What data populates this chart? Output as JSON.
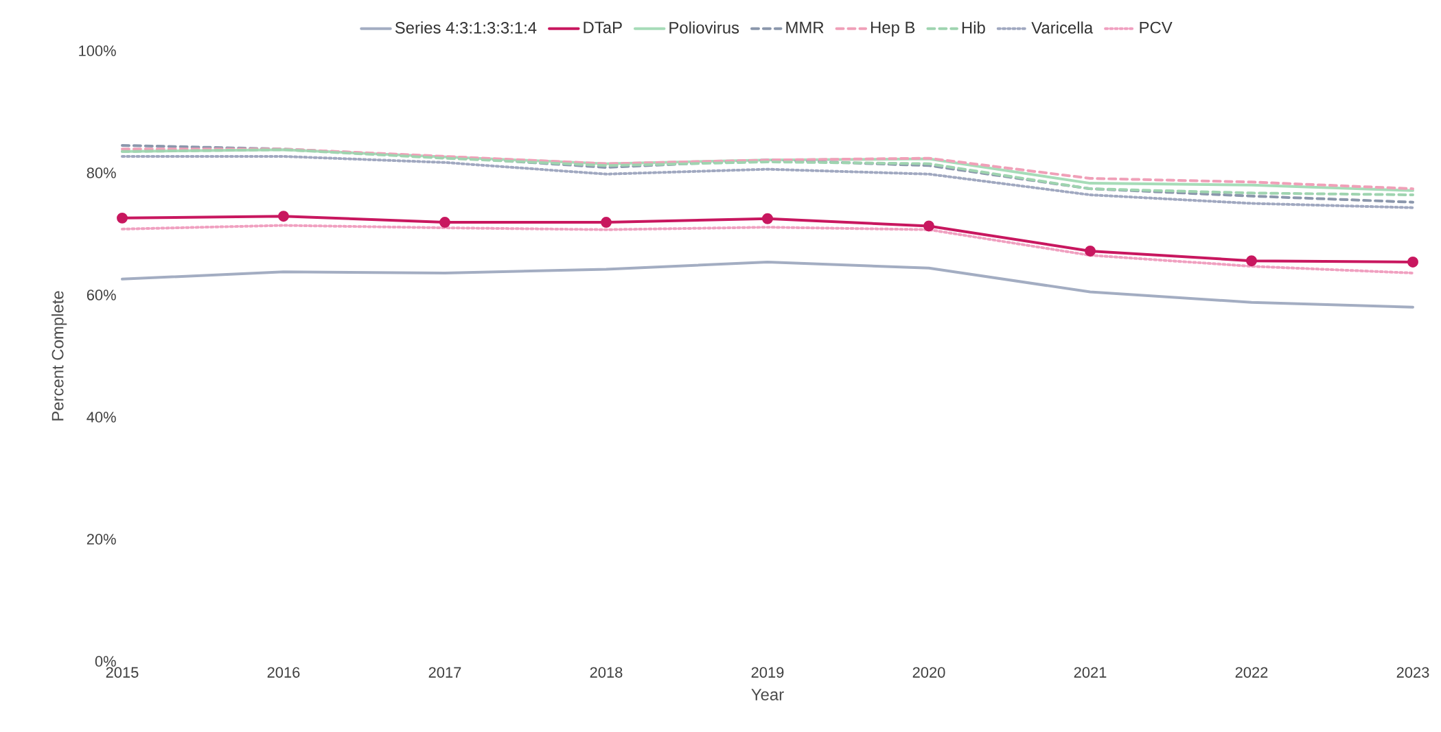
{
  "chart_data": {
    "type": "line",
    "xlabel": "Year",
    "ylabel": "Percent Complete",
    "x": [
      2015,
      2016,
      2017,
      2018,
      2019,
      2020,
      2021,
      2022,
      2023
    ],
    "xlim": [
      2015,
      2023
    ],
    "xticks": [
      2015,
      2016,
      2017,
      2018,
      2019,
      2020,
      2021,
      2022,
      2023
    ],
    "ylim": [
      0,
      100
    ],
    "yticks": [
      {
        "value": 0,
        "label": "0%"
      },
      {
        "value": 20,
        "label": "20%"
      },
      {
        "value": 40,
        "label": "40%"
      },
      {
        "value": 60,
        "label": "60%"
      },
      {
        "value": 80,
        "label": "80%"
      },
      {
        "value": 100,
        "label": "100%"
      }
    ],
    "grid": false,
    "legend": "top",
    "marker": "none",
    "line_style": "solid",
    "series": [
      {
        "name": "Series 4:3:1:3:3:1:4",
        "color": "#a3adc2",
        "values": [
          62.6,
          63.8,
          63.6,
          64.2,
          65.4,
          64.4,
          60.5,
          58.8,
          58.0
        ]
      },
      {
        "name": "DTaP",
        "color": "#c8175f",
        "marker": "circle",
        "values": [
          72.6,
          72.9,
          71.9,
          71.9,
          72.5,
          71.3,
          67.2,
          65.6,
          65.4
        ]
      },
      {
        "name": "Poliovirus",
        "color": "#a6dcb8",
        "values": [
          83.5,
          83.8,
          82.6,
          81.5,
          82.1,
          82.3,
          78.3,
          78.0,
          77.1
        ]
      },
      {
        "name": "MMR",
        "color": "#8b97ac",
        "line_style": "dashed",
        "values": [
          84.5,
          83.9,
          82.6,
          80.9,
          82.1,
          81.2,
          77.4,
          76.2,
          75.2
        ]
      },
      {
        "name": "Hep B",
        "color": "#f0a0b8",
        "line_style": "dashed",
        "values": [
          83.9,
          83.9,
          82.7,
          81.5,
          82.1,
          82.4,
          79.1,
          78.5,
          77.4
        ]
      },
      {
        "name": "Hib",
        "color": "#9fd4b0",
        "line_style": "dashed",
        "values": [
          83.5,
          83.8,
          82.4,
          81.2,
          81.8,
          81.5,
          77.4,
          76.7,
          76.4
        ]
      },
      {
        "name": "Varicella",
        "color": "#a0a8c0",
        "line_style": "dotted",
        "values": [
          82.7,
          82.7,
          81.7,
          79.8,
          80.6,
          79.8,
          76.4,
          75.0,
          74.3
        ]
      },
      {
        "name": "PCV",
        "color": "#f0a0c0",
        "line_style": "dotted",
        "values": [
          70.8,
          71.4,
          71.0,
          70.7,
          71.1,
          70.7,
          66.5,
          64.7,
          63.6
        ]
      }
    ]
  }
}
